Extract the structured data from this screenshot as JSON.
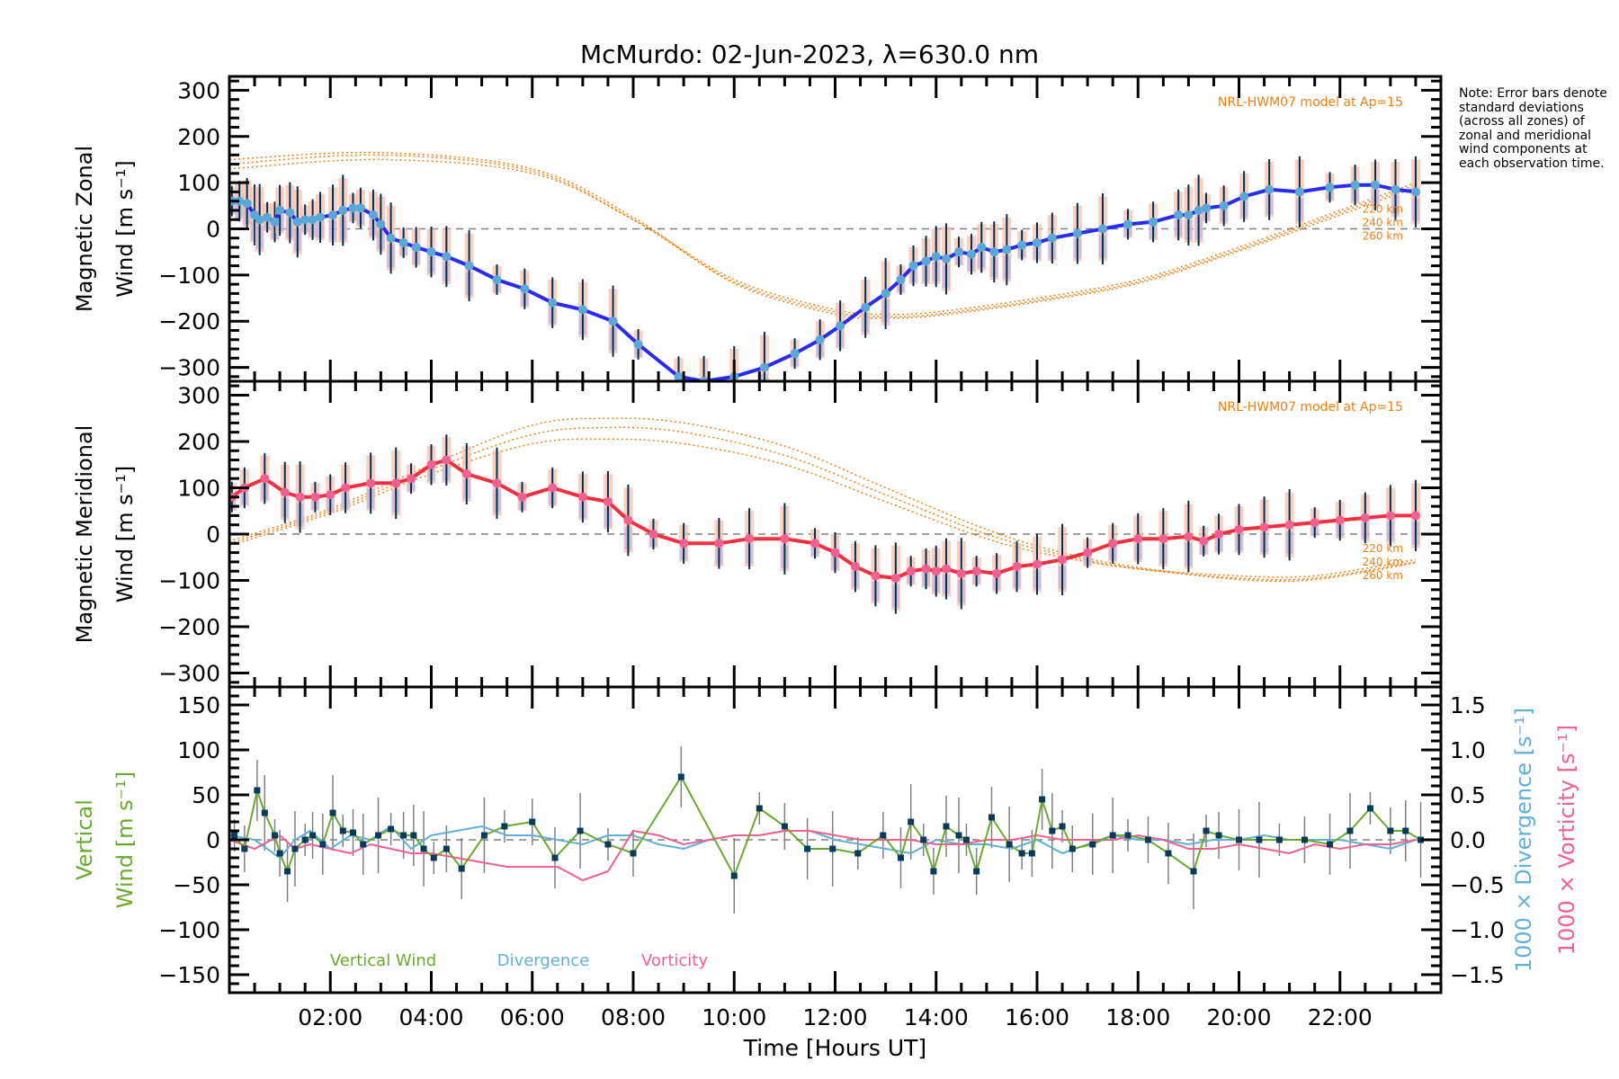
{
  "title": "McMurdo: 02-Jun-2023, λ=630.0 nm",
  "note": "Note: Error bars denote standard deviations (across all zones) of zonal and meridional wind components at each observation time.",
  "colors": {
    "zonal": "#2a2af0",
    "zonal_marker": "#5aa8d8",
    "meridional": "#f03040",
    "meridional_marker": "#f06090",
    "model": "#f08010",
    "vertical": "#6aaa30",
    "vertical_marker": "#0a3a5a",
    "divergence": "#60b0d8",
    "vorticity": "#f06090",
    "errorbar": "#003050",
    "vert_errorbar": "#808080",
    "zone_pink": "#f8c0b0",
    "zone_lilac": "#b0b0e0",
    "zero_line": "#808080"
  },
  "chart_data": [
    {
      "type": "line",
      "name": "zonal",
      "ylabel_line1": "Magnetic Zonal",
      "ylabel_line2": "Wind [m s⁻¹]",
      "ylim": [
        -330,
        330
      ],
      "yticks": [
        -300,
        -200,
        -100,
        0,
        100,
        200,
        300
      ],
      "model_label": "NRL-HWM07 model at Ap=15",
      "model_heights": [
        "220 km",
        "240 km",
        "260 km"
      ],
      "x": [
        0.05,
        0.2,
        0.35,
        0.5,
        0.6,
        0.75,
        0.9,
        1.0,
        1.2,
        1.35,
        1.5,
        1.65,
        1.8,
        2.05,
        2.25,
        2.45,
        2.6,
        2.85,
        3.0,
        3.2,
        3.45,
        3.7,
        4.0,
        4.3,
        4.75,
        5.3,
        5.85,
        6.4,
        7.0,
        7.6,
        8.1,
        8.9,
        9.4,
        10.0,
        10.6,
        11.2,
        11.7,
        12.1,
        12.6,
        13.0,
        13.3,
        13.55,
        13.8,
        14.0,
        14.2,
        14.45,
        14.7,
        14.9,
        15.15,
        15.4,
        15.7,
        16.0,
        16.3,
        16.8,
        17.3,
        17.8,
        18.3,
        18.8,
        19.0,
        19.2,
        19.35,
        19.7,
        20.1,
        20.6,
        21.2,
        21.8,
        22.3,
        22.7,
        23.1,
        23.5
      ],
      "y": [
        60,
        60,
        55,
        30,
        20,
        25,
        15,
        40,
        35,
        15,
        20,
        20,
        25,
        30,
        40,
        45,
        45,
        30,
        10,
        -20,
        -30,
        -40,
        -50,
        -60,
        -80,
        -110,
        -130,
        -160,
        -175,
        -200,
        -250,
        -320,
        -330,
        -320,
        -300,
        -270,
        -240,
        -210,
        -170,
        -140,
        -110,
        -80,
        -70,
        -60,
        -65,
        -50,
        -55,
        -40,
        -50,
        -45,
        -35,
        -30,
        -20,
        -10,
        0,
        10,
        15,
        30,
        30,
        40,
        45,
        50,
        70,
        85,
        80,
        90,
        95,
        95,
        85,
        80
      ],
      "model_220": {
        "x": [
          0,
          3,
          6,
          8,
          10,
          12,
          13,
          14,
          16,
          18,
          20,
          22,
          23.5
        ],
        "y": [
          130,
          150,
          120,
          20,
          -110,
          -175,
          -185,
          -180,
          -150,
          -110,
          -40,
          40,
          100
        ]
      },
      "model_240": {
        "x": [
          0,
          3,
          6,
          8,
          10,
          12,
          13,
          14,
          16,
          18,
          20,
          22,
          23.5
        ],
        "y": [
          140,
          160,
          125,
          20,
          -115,
          -180,
          -190,
          -185,
          -155,
          -115,
          -45,
          35,
          95
        ]
      },
      "model_260": {
        "x": [
          0,
          3,
          6,
          8,
          10,
          12,
          13,
          14,
          16,
          18,
          20,
          22,
          23.5
        ],
        "y": [
          150,
          165,
          130,
          25,
          -118,
          -185,
          -193,
          -188,
          -158,
          -118,
          -48,
          30,
          90
        ]
      }
    },
    {
      "type": "line",
      "name": "meridional",
      "ylabel_line1": "Magnetic Meridional",
      "ylabel_line2": "Wind [m s⁻¹]",
      "ylim": [
        -330,
        330
      ],
      "yticks": [
        -300,
        -200,
        -100,
        0,
        100,
        200,
        300
      ],
      "model_label": "NRL-HWM07 model at Ap=15",
      "model_heights": [
        "220 km",
        "240 km",
        "260 km"
      ],
      "x": [
        0.05,
        0.3,
        0.7,
        1.1,
        1.4,
        1.7,
        2.0,
        2.3,
        2.8,
        3.3,
        3.6,
        4.0,
        4.3,
        4.7,
        5.3,
        5.8,
        6.4,
        7.0,
        7.5,
        7.9,
        8.4,
        9.0,
        9.7,
        10.3,
        11.0,
        11.6,
        12.0,
        12.4,
        12.8,
        13.2,
        13.5,
        13.8,
        14.0,
        14.2,
        14.5,
        14.8,
        15.2,
        15.6,
        16.0,
        16.5,
        17.0,
        17.5,
        18.0,
        18.5,
        19.0,
        19.3,
        19.6,
        20.0,
        20.5,
        21.0,
        21.5,
        22.0,
        22.5,
        23.0,
        23.5
      ],
      "y": [
        80,
        100,
        120,
        90,
        80,
        80,
        85,
        100,
        110,
        110,
        120,
        150,
        160,
        130,
        110,
        80,
        100,
        80,
        70,
        30,
        0,
        -20,
        -20,
        -10,
        -10,
        -20,
        -40,
        -70,
        -90,
        -95,
        -80,
        -75,
        -80,
        -75,
        -85,
        -80,
        -85,
        -70,
        -65,
        -55,
        -40,
        -20,
        -10,
        -10,
        -5,
        -15,
        0,
        10,
        15,
        20,
        25,
        30,
        35,
        40,
        40
      ],
      "model_220": {
        "x": [
          0,
          2,
          4,
          6,
          7.5,
          9,
          11,
          13,
          15,
          16.5,
          18,
          20,
          21.5,
          23.5
        ],
        "y": [
          -25,
          45,
          130,
          195,
          205,
          195,
          150,
          70,
          -10,
          -50,
          -75,
          -90,
          -90,
          -55
        ]
      },
      "model_240": {
        "x": [
          0,
          2,
          4,
          6,
          7.5,
          9,
          11,
          13,
          15,
          16.5,
          18,
          20,
          21.5,
          23.5
        ],
        "y": [
          -20,
          50,
          140,
          215,
          230,
          220,
          170,
          85,
          0,
          -45,
          -75,
          -95,
          -95,
          -60
        ]
      },
      "model_260": {
        "x": [
          0,
          2,
          4,
          6,
          7.5,
          9,
          11,
          13,
          15,
          16.5,
          18,
          20,
          21.5,
          23.5
        ],
        "y": [
          -15,
          55,
          150,
          235,
          250,
          240,
          190,
          100,
          10,
          -40,
          -72,
          -98,
          -98,
          -62
        ]
      }
    },
    {
      "type": "line",
      "name": "vertical",
      "ylabel_left_line1": "Vertical",
      "ylabel_left_line2": "Wind [m s⁻¹]",
      "ylabel_right1": "1000 × Divergence [s⁻¹]",
      "ylabel_right2": "1000 × Vorticity [s⁻¹]",
      "ylim": [
        -170,
        170
      ],
      "yticks": [
        -150,
        -100,
        -50,
        0,
        50,
        100,
        150
      ],
      "ylim_right": [
        -1.7,
        1.7
      ],
      "yticks_right": [
        -1.5,
        -1.0,
        -0.5,
        0.0,
        0.5,
        1.0,
        1.5
      ],
      "xticks": [
        2,
        4,
        6,
        8,
        10,
        12,
        14,
        16,
        18,
        20,
        22
      ],
      "xticklabels": [
        "02:00",
        "04:00",
        "06:00",
        "08:00",
        "10:00",
        "12:00",
        "14:00",
        "16:00",
        "18:00",
        "20:00",
        "22:00"
      ],
      "xlim": [
        0,
        24
      ],
      "xlabel": "Time [Hours UT]",
      "legend": [
        "Vertical Wind",
        "Divergence",
        "Vorticity"
      ],
      "vertical": {
        "x": [
          0.1,
          0.3,
          0.55,
          0.7,
          0.9,
          1.0,
          1.15,
          1.3,
          1.5,
          1.65,
          1.85,
          2.05,
          2.25,
          2.45,
          2.65,
          2.95,
          3.2,
          3.45,
          3.65,
          3.85,
          4.05,
          4.3,
          4.6,
          5.05,
          5.45,
          6.0,
          6.45,
          6.95,
          7.5,
          8.0,
          8.95,
          10.0,
          10.5,
          11.0,
          11.45,
          11.95,
          12.45,
          12.95,
          13.3,
          13.5,
          13.75,
          13.95,
          14.2,
          14.45,
          14.6,
          14.8,
          15.1,
          15.45,
          15.7,
          15.9,
          16.1,
          16.3,
          16.5,
          16.7,
          17.1,
          17.5,
          17.8,
          18.2,
          18.6,
          19.1,
          19.35,
          19.6,
          20.0,
          20.4,
          20.8,
          21.3,
          21.8,
          22.2,
          22.6,
          23.0,
          23.3,
          23.6
        ],
        "y": [
          5,
          -10,
          55,
          30,
          5,
          -15,
          -35,
          -10,
          0,
          5,
          -5,
          30,
          10,
          8,
          -5,
          5,
          12,
          5,
          5,
          -10,
          -20,
          -10,
          -32,
          5,
          15,
          20,
          -20,
          10,
          -5,
          -15,
          70,
          -40,
          35,
          15,
          -10,
          -10,
          -15,
          5,
          -20,
          20,
          0,
          -35,
          15,
          5,
          0,
          -35,
          25,
          -5,
          -15,
          -15,
          45,
          10,
          15,
          -10,
          -5,
          5,
          5,
          0,
          -15,
          -35,
          10,
          5,
          0,
          0,
          0,
          0,
          -5,
          10,
          35,
          10,
          10,
          0
        ]
      },
      "divergence": {
        "x": [
          0,
          0.5,
          1.0,
          1.3,
          1.6,
          2.0,
          2.4,
          2.8,
          3.2,
          3.6,
          4.0,
          4.5,
          5.0,
          5.5,
          6.0,
          6.5,
          7.0,
          7.5,
          8.0,
          8.5,
          9.0,
          9.5,
          10.0,
          10.5,
          11.0,
          11.5,
          12.0,
          12.5,
          13.0,
          13.5,
          14.0,
          14.5,
          15.0,
          15.5,
          16.0,
          16.5,
          17.0,
          17.5,
          18.0,
          18.5,
          19.0,
          19.5,
          20.0,
          20.5,
          21.0,
          21.5,
          22.0,
          22.5,
          23.0,
          23.5
        ],
        "y": [
          0.05,
          0.0,
          -0.2,
          0.0,
          0.1,
          -0.1,
          0.05,
          0.0,
          0.15,
          -0.1,
          0.05,
          0.1,
          0.15,
          0.05,
          0.05,
          0.0,
          -0.05,
          0.05,
          0.05,
          -0.05,
          -0.1,
          0.0,
          0.05,
          0.05,
          0.1,
          0.1,
          0.0,
          -0.05,
          -0.1,
          -0.15,
          0.0,
          -0.05,
          -0.05,
          -0.1,
          0.0,
          -0.15,
          -0.05,
          0.05,
          0.0,
          0.0,
          -0.05,
          0.0,
          0.0,
          0.05,
          0.0,
          0.0,
          0.0,
          -0.05,
          -0.1,
          0.0
        ]
      },
      "vorticity": {
        "x": [
          0,
          0.5,
          1.0,
          1.3,
          1.6,
          2.0,
          2.4,
          2.8,
          3.2,
          3.6,
          4.0,
          4.5,
          5.0,
          5.5,
          6.0,
          6.5,
          7.0,
          7.5,
          8.0,
          8.5,
          9.0,
          9.5,
          10.0,
          10.5,
          11.0,
          11.5,
          12.0,
          12.5,
          13.0,
          13.5,
          14.0,
          14.5,
          15.0,
          15.5,
          16.0,
          16.5,
          17.0,
          17.5,
          18.0,
          18.5,
          19.0,
          19.5,
          20.0,
          20.5,
          21.0,
          21.5,
          22.0,
          22.5,
          23.0,
          23.5
        ],
        "y": [
          0.0,
          -0.1,
          0.05,
          -0.1,
          -0.05,
          -0.1,
          -0.15,
          -0.05,
          -0.1,
          -0.15,
          -0.15,
          -0.2,
          -0.25,
          -0.3,
          -0.3,
          -0.3,
          -0.45,
          -0.35,
          0.1,
          0.05,
          -0.05,
          0.0,
          0.05,
          0.05,
          0.1,
          0.1,
          0.05,
          0.0,
          0.0,
          0.0,
          -0.05,
          -0.05,
          0.0,
          0.0,
          0.05,
          0.0,
          0.0,
          0.0,
          0.05,
          0.0,
          -0.1,
          -0.1,
          -0.05,
          -0.1,
          -0.15,
          -0.05,
          -0.1,
          -0.05,
          -0.05,
          0.0
        ]
      }
    }
  ]
}
